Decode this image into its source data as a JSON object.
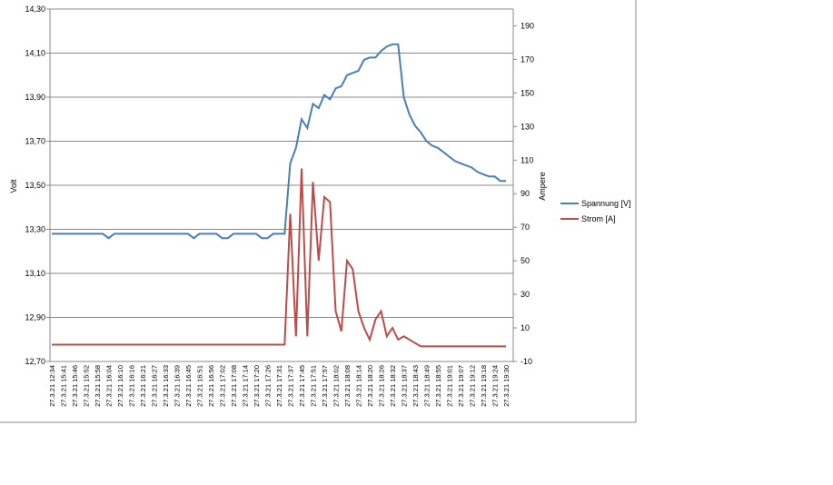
{
  "chart_data": {
    "type": "line",
    "y_label": "Volt",
    "y2_label": "Ampere",
    "categories": [
      "27.3.21 12:34",
      null,
      "27.3.21 15:41",
      null,
      "27.3.21 15:46",
      null,
      "27.3.21 15:52",
      null,
      "27.3.21 15:58",
      null,
      "27.3.21 16:04",
      null,
      "27.3.21 16:10",
      null,
      "27.3.21 16:16",
      null,
      "27.3.21 16:21",
      null,
      "27.3.21 16:27",
      null,
      "27.3.21 16:33",
      null,
      "27.3.21 16:39",
      null,
      "27.3.21 16:45",
      null,
      "27.3.21 16:51",
      null,
      "27.3.21 16:56",
      null,
      "27.3.21 17:02",
      null,
      "27.3.21 17:08",
      null,
      "27.3.21 17:14",
      null,
      "27.3.21 17:20",
      null,
      "27.3.21 17:26",
      null,
      "27.3.21 17:31",
      null,
      "27.3.21 17:37",
      null,
      "27.3.21 17:45",
      null,
      "27.3.21 17:51",
      null,
      "27.3.21 17:57",
      null,
      "27.3.21 18:02",
      null,
      "27.3.21 18:08",
      null,
      "27.3.21 18:14",
      null,
      "27.3.21 18:20",
      null,
      "27.3.21 18:26",
      null,
      "27.3.21 18:32",
      null,
      "27.3.21 18:37",
      null,
      "27.3.21 18:43",
      null,
      "27.3.21 18:49",
      null,
      "27.3.21 18:55",
      null,
      "27.3.21 19:01",
      null,
      "27.3.21 19:07",
      null,
      "27.3.21 19:12",
      null,
      "27.3.21 19:18",
      null,
      "27.3.21 19:24",
      null,
      "27.3.21 19:30"
    ],
    "series": [
      {
        "name": "Spannung [V]",
        "color": "#4a7ebb",
        "values": [
          13.28,
          13.28,
          13.28,
          13.28,
          13.28,
          13.28,
          13.28,
          13.28,
          13.28,
          13.28,
          13.26,
          13.28,
          13.28,
          13.28,
          13.28,
          13.28,
          13.28,
          13.28,
          13.28,
          13.28,
          13.28,
          13.28,
          13.28,
          13.28,
          13.28,
          13.26,
          13.28,
          13.28,
          13.28,
          13.28,
          13.26,
          13.26,
          13.28,
          13.28,
          13.28,
          13.28,
          13.28,
          13.26,
          13.26,
          13.28,
          13.28,
          13.28,
          13.6,
          13.67,
          13.8,
          13.76,
          13.87,
          13.85,
          13.91,
          13.89,
          13.94,
          13.95,
          14.0,
          14.01,
          14.02,
          14.07,
          14.08,
          14.08,
          14.11,
          14.13,
          14.14,
          14.14,
          13.9,
          13.82,
          13.77,
          13.74,
          13.7,
          13.68,
          13.67,
          13.65,
          13.63,
          13.61,
          13.6,
          13.59,
          13.58,
          13.56,
          13.55,
          13.54,
          13.54,
          13.52,
          13.52
        ]
      },
      {
        "name": "Strom [A]",
        "color": "#be4b48",
        "axis": "y2",
        "values": [
          0,
          0,
          0,
          0,
          0,
          0,
          0,
          0,
          0,
          0,
          0,
          0,
          0,
          0,
          0,
          0,
          0,
          0,
          0,
          0,
          0,
          0,
          0,
          0,
          0,
          0,
          0,
          0,
          0,
          0,
          0,
          0,
          0,
          0,
          0,
          0,
          0,
          0,
          0,
          0,
          0,
          0,
          78,
          5,
          105,
          5,
          97,
          50,
          88,
          85,
          20,
          8,
          50,
          45,
          20,
          10,
          3,
          15,
          20,
          5,
          10,
          3,
          5,
          3,
          1,
          -1,
          -1,
          -1,
          -1,
          -1,
          -1,
          -1,
          -1,
          -1,
          -1,
          -1,
          -1,
          -1,
          -1,
          -1,
          -1
        ]
      }
    ],
    "ylim": [
      12.7,
      14.3
    ],
    "yticks": [
      {
        "value": 12.7,
        "label": "12,70"
      },
      {
        "value": 12.9,
        "label": "12,90"
      },
      {
        "value": 13.1,
        "label": "13,10"
      },
      {
        "value": 13.3,
        "label": "13,30"
      },
      {
        "value": 13.5,
        "label": "13,50"
      },
      {
        "value": 13.7,
        "label": "13,70"
      },
      {
        "value": 13.9,
        "label": "13,90"
      },
      {
        "value": 14.1,
        "label": "14,10"
      },
      {
        "value": 14.3,
        "label": "14,30"
      }
    ],
    "y2lim": [
      -10,
      200
    ],
    "y2ticks": [
      -10,
      10,
      30,
      50,
      70,
      90,
      110,
      130,
      150,
      170,
      190
    ],
    "grid": true,
    "legend": "right"
  }
}
